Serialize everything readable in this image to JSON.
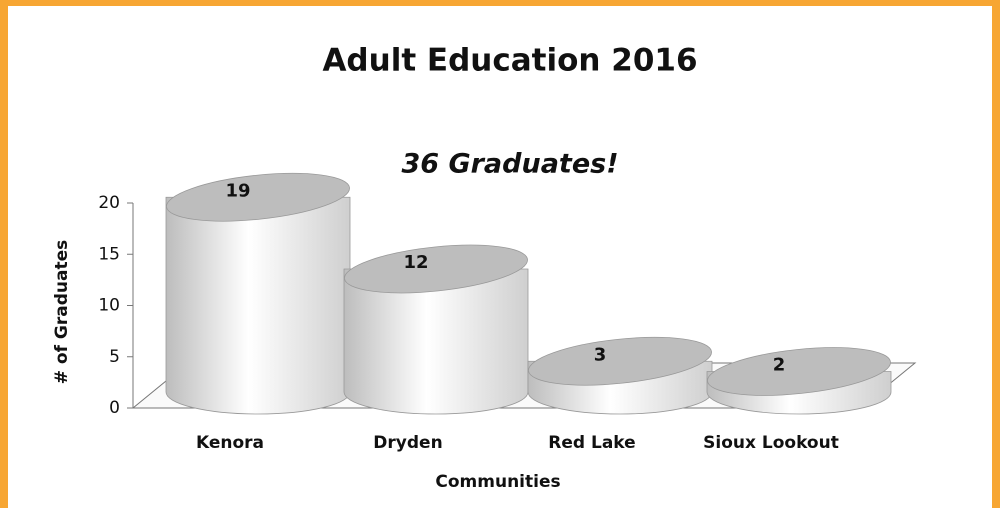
{
  "chart_data": {
    "type": "cylinder",
    "title": "Adult Education 2016",
    "annotation": "36 Graduates!",
    "categories": [
      "Kenora",
      "Dryden",
      "Red Lake",
      "Sioux Lookout"
    ],
    "values": [
      19,
      12,
      3,
      2
    ],
    "ylabel": "# of Graduates",
    "xlabel": "Communities",
    "ylim": [
      0,
      20
    ],
    "yticks": [
      0,
      5,
      10,
      15,
      20
    ],
    "color": "#bdbdbd",
    "grid": false
  }
}
